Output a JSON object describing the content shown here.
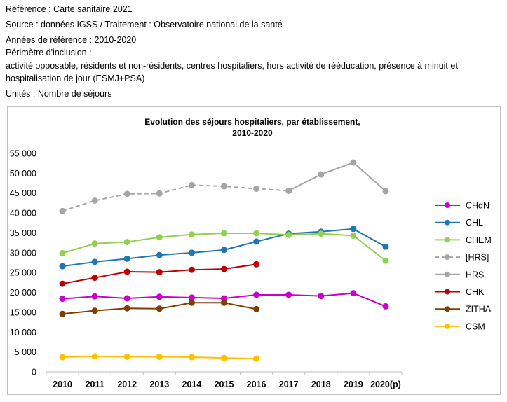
{
  "metadata": {
    "reference": "Référence : Carte sanitaire 2021",
    "source": "Source : données IGSS / Traitement : Observatoire national de la santé",
    "years": "Années de référence : 2010-2020",
    "perimeter_label": "Périmètre d'inclusion :",
    "perimeter_text": "activité opposable, résidents et non-résidents, centres hospitaliers, hors activité de rééducation, présence à minuit et hospitalisation de jour (ESMJ+PSA)",
    "units": "Unités : Nombre de séjours"
  },
  "chart_data": {
    "type": "line",
    "title_line1": "Evolution des séjours hospitaliers, par établissement,",
    "title_line2": "2010-2020",
    "x": [
      "2010",
      "2011",
      "2012",
      "2013",
      "2014",
      "2015",
      "2016",
      "2017",
      "2018",
      "2019",
      "2020(p)"
    ],
    "ylim": [
      0,
      55000
    ],
    "yticks": [
      0,
      5000,
      10000,
      15000,
      20000,
      25000,
      30000,
      35000,
      40000,
      45000,
      50000,
      55000
    ],
    "ytick_labels": [
      "0",
      "5 000",
      "10 000",
      "15 000",
      "20 000",
      "25 000",
      "30 000",
      "35 000",
      "40 000",
      "45 000",
      "50 000",
      "55 000"
    ],
    "grid": false,
    "legend_position": "right",
    "series": [
      {
        "name": "CHdN",
        "color": "#cc00cc",
        "dashed": false,
        "values": [
          18400,
          19000,
          18500,
          18900,
          18700,
          18500,
          19400,
          19400,
          19100,
          19800,
          16500
        ]
      },
      {
        "name": "CHL",
        "color": "#1f77b4",
        "dashed": false,
        "values": [
          26600,
          27700,
          28500,
          29400,
          30000,
          30700,
          32800,
          34800,
          35300,
          36000,
          31500
        ]
      },
      {
        "name": "CHEM",
        "color": "#92d050",
        "dashed": false,
        "values": [
          29900,
          32300,
          32700,
          33900,
          34600,
          34900,
          34900,
          34500,
          34800,
          34300,
          28000
        ]
      },
      {
        "name": "[HRS]",
        "color": "#a5a5a5",
        "dashed": true,
        "values": [
          40500,
          43100,
          44800,
          44900,
          47000,
          46700,
          46100,
          45600,
          null,
          null,
          null
        ]
      },
      {
        "name": "HRS",
        "color": "#a5a5a5",
        "dashed": false,
        "values": [
          null,
          null,
          null,
          null,
          null,
          null,
          null,
          45600,
          49700,
          52700,
          45500
        ]
      },
      {
        "name": "CHK",
        "color": "#c00000",
        "dashed": false,
        "values": [
          22200,
          23700,
          25200,
          25100,
          25700,
          25900,
          27100,
          null,
          null,
          null,
          null
        ]
      },
      {
        "name": "ZITHA",
        "color": "#7f3f00",
        "dashed": false,
        "values": [
          14600,
          15400,
          16000,
          15900,
          17400,
          17400,
          15800,
          null,
          null,
          null,
          null
        ]
      },
      {
        "name": "CSM",
        "color": "#ffc000",
        "dashed": false,
        "values": [
          3700,
          3900,
          3800,
          3800,
          3700,
          3500,
          3300,
          null,
          null,
          null,
          null
        ]
      }
    ]
  }
}
